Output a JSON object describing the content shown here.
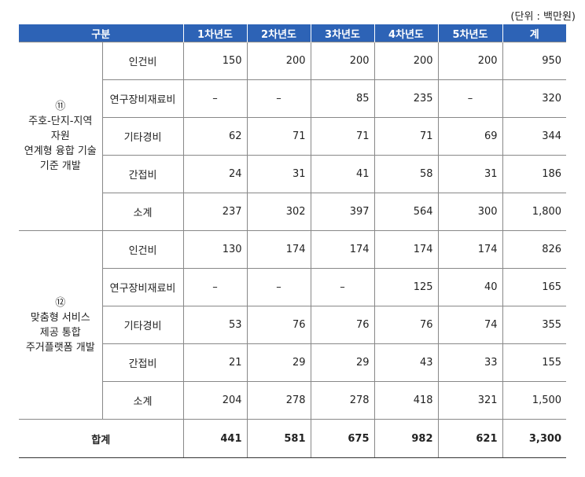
{
  "unit_note": "(단위 : 백만원)",
  "header": {
    "category": "구분",
    "years": [
      "1차년도",
      "2차년도",
      "3차년도",
      "4차년도",
      "5차년도"
    ],
    "total": "계"
  },
  "groups": [
    {
      "number": "⑪",
      "title_lines": [
        "주호-단지-지역",
        "자원",
        "연계형 융합 기술",
        "기준 개발"
      ],
      "rows": [
        {
          "item": "인건비",
          "values": [
            "150",
            "200",
            "200",
            "200",
            "200"
          ],
          "total": "950"
        },
        {
          "item": "연구장비재료비",
          "values": [
            "–",
            "–",
            "85",
            "235",
            "–"
          ],
          "total": "320"
        },
        {
          "item": "기타경비",
          "values": [
            "62",
            "71",
            "71",
            "71",
            "69"
          ],
          "total": "344"
        },
        {
          "item": "간접비",
          "values": [
            "24",
            "31",
            "41",
            "58",
            "31"
          ],
          "total": "186"
        },
        {
          "item": "소계",
          "values": [
            "237",
            "302",
            "397",
            "564",
            "300"
          ],
          "total": "1,800"
        }
      ]
    },
    {
      "number": "⑫",
      "title_lines": [
        "맞춤형 서비스",
        "제공 통합",
        "주거플랫폼 개발"
      ],
      "rows": [
        {
          "item": "인건비",
          "values": [
            "130",
            "174",
            "174",
            "174",
            "174"
          ],
          "total": "826"
        },
        {
          "item": "연구장비재료비",
          "values": [
            "–",
            "–",
            "–",
            "125",
            "40"
          ],
          "total": "165"
        },
        {
          "item": "기타경비",
          "values": [
            "53",
            "76",
            "76",
            "76",
            "74"
          ],
          "total": "355"
        },
        {
          "item": "간접비",
          "values": [
            "21",
            "29",
            "29",
            "43",
            "33"
          ],
          "total": "155"
        },
        {
          "item": "소계",
          "values": [
            "204",
            "278",
            "278",
            "418",
            "321"
          ],
          "total": "1,500"
        }
      ]
    }
  ],
  "grand_total": {
    "label": "합계",
    "values": [
      "441",
      "581",
      "675",
      "982",
      "621"
    ],
    "total": "3,300"
  }
}
